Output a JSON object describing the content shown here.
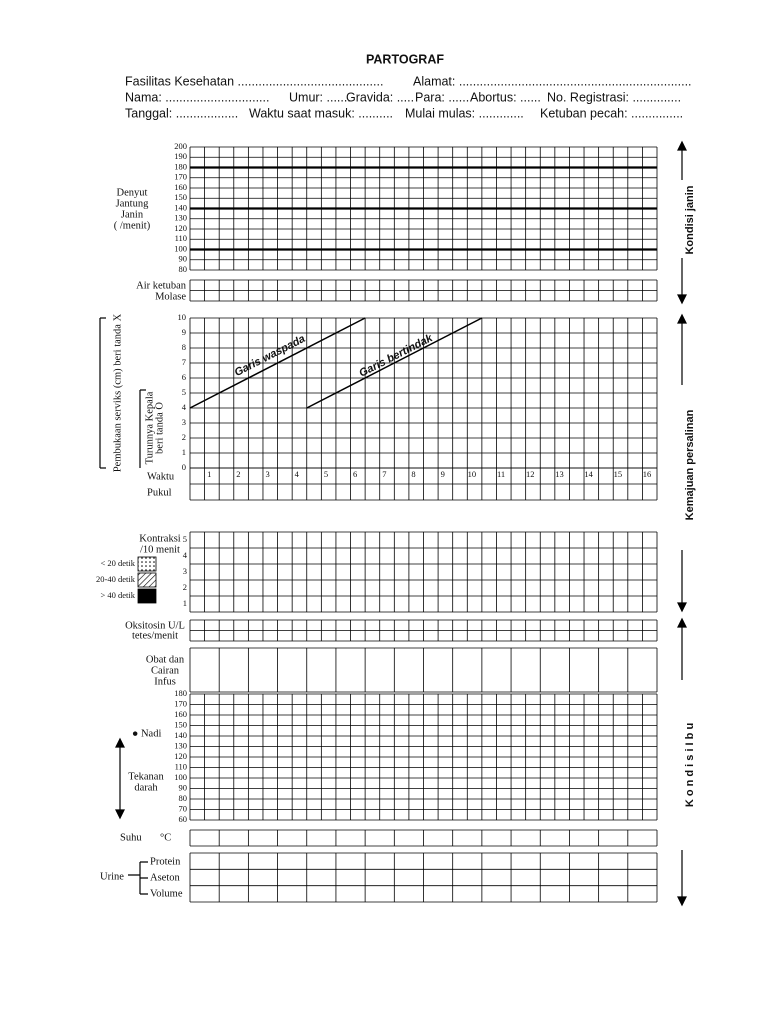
{
  "header": {
    "title": "PARTOGRAF",
    "fields": [
      "Fasilitas Kesehatan ..........................................",
      "Alamat: ...................................................................",
      "Nama: ..............................",
      "Umur: .......",
      "Gravida: .....",
      "Para: ......",
      "Abortus: ......",
      "No. Registrasi: ..............",
      "Tanggal: ..................",
      "Waktu saat masuk: ..........",
      "Mulai mulas: .............",
      "Ketuban pecah: ..............."
    ]
  },
  "fetal": {
    "labels": [
      "Denyut",
      "Jantung",
      "Janin",
      "(   /menit)"
    ],
    "scale": [
      200,
      190,
      180,
      170,
      160,
      150,
      140,
      130,
      120,
      110,
      100,
      90,
      80
    ],
    "thick_lines": [
      180,
      140,
      100
    ],
    "side": "Kondisi janin"
  },
  "amniotic": {
    "labels": [
      "Air ketuban",
      "Molase"
    ]
  },
  "labour": {
    "scale": [
      10,
      9,
      8,
      7,
      6,
      5,
      4,
      3,
      2,
      1,
      0
    ],
    "cervix_label": "Pembukaan serviks (cm) beri tanda X",
    "descent_label": [
      "Turunnya Kepala",
      "beri tanda O"
    ],
    "alert_line": "Garis waspada",
    "action_line": "Garis bertindak",
    "time_label": "Waktu",
    "clock_label": "Pukul",
    "hours": [
      1,
      2,
      3,
      4,
      5,
      6,
      7,
      8,
      9,
      10,
      11,
      12,
      13,
      14,
      15,
      16
    ],
    "side": "Kemajuan persalinan"
  },
  "contractions": {
    "labels": [
      "Kontraksi",
      "/10 menit"
    ],
    "scale": [
      5,
      4,
      3,
      2,
      1
    ],
    "legend": [
      "< 20 detik",
      "20-40 detik",
      "> 40 detik"
    ]
  },
  "oxytocin": {
    "labels": [
      "Oksitosin U/L",
      "tetes/menit"
    ]
  },
  "drugs": {
    "labels": [
      "Obat dan",
      "Cairan",
      "Infus"
    ]
  },
  "vitals": {
    "scale": [
      180,
      170,
      160,
      150,
      140,
      130,
      120,
      110,
      100,
      90,
      80,
      70,
      60
    ],
    "pulse": "● Nadi",
    "bp": [
      "Tekanan",
      "darah"
    ],
    "side": "K o n d i s i   I b u"
  },
  "temperature": {
    "label": "Suhu",
    "unit": "°C"
  },
  "urine": {
    "label": "Urine",
    "rows": [
      "Protein",
      "Aseton",
      "Volume"
    ]
  }
}
